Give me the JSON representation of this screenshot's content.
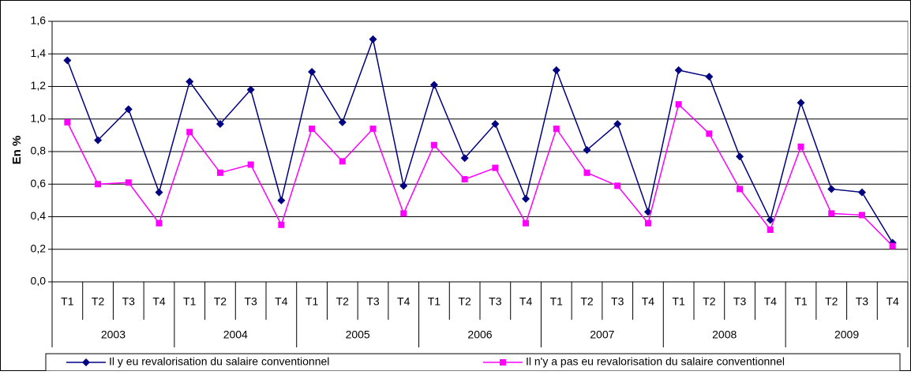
{
  "chart_data": {
    "type": "line",
    "y_label": "En %",
    "categories": [
      "T1",
      "T2",
      "T3",
      "T4",
      "T1",
      "T2",
      "T3",
      "T4",
      "T1",
      "T2",
      "T3",
      "T4",
      "T1",
      "T2",
      "T3",
      "T4",
      "T1",
      "T2",
      "T3",
      "T4",
      "T1",
      "T2",
      "T3",
      "T4",
      "T1",
      "T2",
      "T3",
      "T4"
    ],
    "groups": [
      "2003",
      "2004",
      "2005",
      "2006",
      "2007",
      "2008",
      "2009"
    ],
    "series": [
      {
        "name": "Il y eu revalorisation du salaire conventionnel",
        "color": "#000080",
        "marker": "diamond",
        "values": [
          1.36,
          0.87,
          1.06,
          0.55,
          1.23,
          0.97,
          1.18,
          0.5,
          1.29,
          0.98,
          1.49,
          0.59,
          1.21,
          0.76,
          0.97,
          0.51,
          1.3,
          0.81,
          0.97,
          0.43,
          1.3,
          1.26,
          0.77,
          0.38,
          1.1,
          0.57,
          0.55,
          0.24
        ]
      },
      {
        "name": "Il n'y a pas eu revalorisation du salaire conventionnel",
        "color": "#ff00ff",
        "marker": "square",
        "values": [
          0.98,
          0.6,
          0.61,
          0.36,
          0.92,
          0.67,
          0.72,
          0.35,
          0.94,
          0.74,
          0.94,
          0.42,
          0.84,
          0.63,
          0.7,
          0.36,
          0.94,
          0.67,
          0.59,
          0.36,
          1.09,
          0.91,
          0.57,
          0.32,
          0.83,
          0.42,
          0.41,
          0.22
        ]
      }
    ],
    "ylim": [
      0,
      1.6
    ],
    "yticks": [
      {
        "value": 0,
        "label": "0,0"
      },
      {
        "value": 0.2,
        "label": "0,2"
      },
      {
        "value": 0.4,
        "label": "0,4"
      },
      {
        "value": 0.6,
        "label": "0,6"
      },
      {
        "value": 0.8,
        "label": "0,8"
      },
      {
        "value": 1.0,
        "label": "1,0"
      },
      {
        "value": 1.2,
        "label": "1,2"
      },
      {
        "value": 1.4,
        "label": "1,4"
      },
      {
        "value": 1.6,
        "label": "1,6"
      }
    ],
    "grid": true,
    "legend": "bottom"
  }
}
